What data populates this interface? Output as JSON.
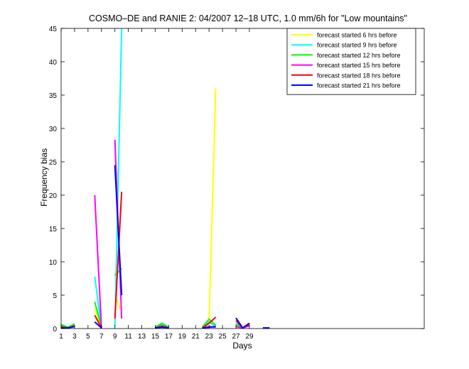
{
  "chart_data": {
    "type": "line",
    "title": "COSMO–DE and RANIE 2: 04/2007 12–18 UTC, 1.0 mm/6h for \"Low mountains\"",
    "xlabel": "Days",
    "ylabel": "Frequency bias",
    "xlim": [
      1,
      55
    ],
    "ylim": [
      0,
      45
    ],
    "xticks": [
      1,
      3,
      5,
      7,
      9,
      11,
      13,
      15,
      17,
      19,
      21,
      23,
      25,
      27,
      29
    ],
    "yticks": [
      0,
      5,
      10,
      15,
      20,
      25,
      30,
      35,
      40,
      45
    ],
    "grid": false,
    "legend_position": "top-right",
    "series": [
      {
        "name": "forecast started 6 hrs before",
        "color": "#ffff00",
        "segments": [
          [
            [
              1,
              0.6
            ],
            [
              2,
              0.1
            ],
            [
              3,
              0.6
            ]
          ],
          [
            [
              6,
              3.0
            ],
            [
              7,
              0.1
            ]
          ],
          [
            [
              9,
              5.0
            ],
            [
              10,
              2.5
            ]
          ],
          [
            [
              15,
              0.1
            ],
            [
              16,
              0.6
            ],
            [
              17,
              0.1
            ]
          ],
          [
            [
              22,
              0.1
            ],
            [
              23,
              1.0
            ],
            [
              24,
              36.0
            ]
          ],
          [
            [
              27,
              0.2
            ],
            [
              28,
              0.1
            ],
            [
              29,
              0.4
            ]
          ]
        ]
      },
      {
        "name": "forecast started 9 hrs before",
        "color": "#00ffff",
        "segments": [
          [
            [
              1,
              0.5
            ],
            [
              2,
              0.1
            ],
            [
              3,
              0.5
            ]
          ],
          [
            [
              6,
              7.8
            ],
            [
              7,
              0.1
            ]
          ],
          [
            [
              9,
              0.3
            ],
            [
              10,
              45.0
            ]
          ],
          [
            [
              15,
              0.1
            ],
            [
              16,
              0.6
            ],
            [
              17,
              0.1
            ]
          ],
          [
            [
              22,
              0.1
            ],
            [
              23,
              1.0
            ],
            [
              24,
              0.3
            ]
          ],
          [
            [
              27,
              0.8
            ],
            [
              28,
              0.1
            ],
            [
              29,
              0.6
            ]
          ]
        ]
      },
      {
        "name": "forecast started 12 hrs before",
        "color": "#00ff00",
        "segments": [
          [
            [
              1,
              0.6
            ],
            [
              2,
              0.2
            ],
            [
              3,
              0.7
            ]
          ],
          [
            [
              6,
              4.0
            ],
            [
              7,
              0.2
            ]
          ],
          [
            [
              9,
              8.0
            ],
            [
              10,
              9.0
            ]
          ],
          [
            [
              15,
              0.2
            ],
            [
              16,
              0.8
            ],
            [
              17,
              0.2
            ]
          ],
          [
            [
              22,
              0.2
            ],
            [
              23,
              1.4
            ],
            [
              24,
              0.5
            ]
          ],
          [
            [
              27,
              0.6
            ],
            [
              28,
              0.1
            ],
            [
              29,
              0.7
            ]
          ]
        ]
      },
      {
        "name": "forecast started 15 hrs before",
        "color": "#ff00ff",
        "segments": [
          [
            [
              1,
              0.2
            ],
            [
              2,
              0.1
            ],
            [
              3,
              0.3
            ]
          ],
          [
            [
              6,
              20.0
            ],
            [
              7,
              0.1
            ]
          ],
          [
            [
              9,
              28.3
            ],
            [
              10,
              1.5
            ]
          ],
          [
            [
              15,
              0.1
            ],
            [
              16,
              0.3
            ],
            [
              17,
              0.1
            ]
          ],
          [
            [
              22,
              0.1
            ],
            [
              23,
              0.3
            ],
            [
              24,
              0.2
            ]
          ],
          [
            [
              27,
              0.3
            ],
            [
              28,
              0.1
            ],
            [
              29,
              0.4
            ]
          ]
        ]
      },
      {
        "name": "forecast started 18 hrs before",
        "color": "#ff0000",
        "segments": [
          [
            [
              1,
              0.3
            ],
            [
              2,
              0.1
            ],
            [
              3,
              0.4
            ]
          ],
          [
            [
              6,
              2.0
            ],
            [
              7,
              0.1
            ]
          ],
          [
            [
              9,
              1.5
            ],
            [
              10,
              20.5
            ]
          ],
          [
            [
              15,
              0.1
            ],
            [
              16,
              0.4
            ],
            [
              17,
              0.1
            ]
          ],
          [
            [
              22,
              0.1
            ],
            [
              23,
              0.8
            ],
            [
              24,
              1.7
            ]
          ],
          [
            [
              27,
              1.2
            ],
            [
              28,
              0.1
            ],
            [
              29,
              0.6
            ]
          ]
        ]
      },
      {
        "name": "forecast started 21 hrs before",
        "color": "#0000ff",
        "segments": [
          [
            [
              1,
              0.1
            ],
            [
              2,
              0.1
            ],
            [
              3,
              0.3
            ]
          ],
          [
            [
              6,
              1.0
            ],
            [
              7,
              0.1
            ]
          ],
          [
            [
              9,
              24.5
            ],
            [
              10,
              5.0
            ]
          ],
          [
            [
              15,
              0.1
            ],
            [
              16,
              0.2
            ],
            [
              17,
              0.1
            ]
          ],
          [
            [
              22,
              0.1
            ],
            [
              23,
              0.2
            ],
            [
              24,
              0.3
            ]
          ],
          [
            [
              27,
              1.6
            ],
            [
              28,
              0.1
            ],
            [
              29,
              0.8
            ]
          ],
          [
            [
              31,
              0.1
            ],
            [
              32,
              0.1
            ]
          ]
        ]
      }
    ]
  }
}
